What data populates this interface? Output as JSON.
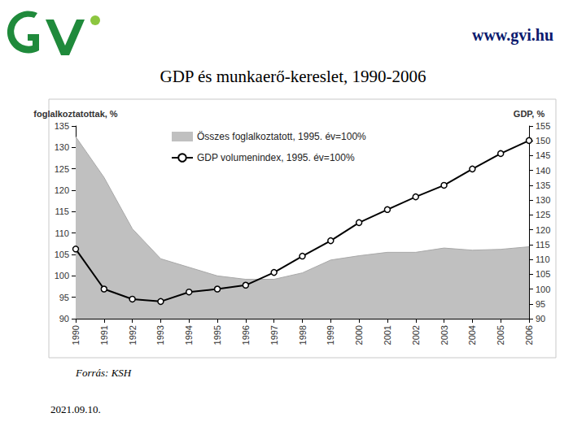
{
  "url": "www.gvi.hu",
  "source": "Forrás: KSH",
  "date": "2021.09.10.",
  "chart_data": {
    "type": "line",
    "title": "GDP és munkaerő-kereslet, 1990-2006",
    "y_label": "foglalkoztatottak, %",
    "y2_label": "GDP, %",
    "categories": [
      "1990",
      "1991",
      "1992",
      "1993",
      "1994",
      "1995",
      "1996",
      "1997",
      "1998",
      "1999",
      "2000",
      "2001",
      "2002",
      "2003",
      "2004",
      "2005",
      "2006"
    ],
    "ylim": [
      90,
      135
    ],
    "yticks": [
      90,
      95,
      100,
      105,
      110,
      115,
      120,
      125,
      130,
      135
    ],
    "y2lim": [
      90,
      155
    ],
    "y2ticks": [
      90,
      95,
      100,
      105,
      110,
      115,
      120,
      125,
      130,
      135,
      140,
      145,
      150,
      155
    ],
    "grid": false,
    "legend": "upper left",
    "series": [
      {
        "name": "Összes foglalkoztatott, 1995. év=100%",
        "type": "area",
        "color": "#c0c0c0",
        "values": [
          132.5,
          123,
          111,
          104,
          102,
          100,
          99.2,
          99.2,
          100.7,
          103.7,
          104.7,
          105.5,
          105.5,
          106.5,
          106,
          106.2,
          106.8
        ]
      },
      {
        "name": "GDP volumenindex, 1995. év=100%",
        "type": "line",
        "color": "#000000",
        "marker": "circle",
        "axis": "y2",
        "values": [
          113.5,
          100,
          96.6,
          95.8,
          99,
          100,
          101.3,
          105.6,
          111.1,
          116.3,
          122.4,
          126.8,
          131.1,
          135,
          140.5,
          145.7,
          150.1
        ]
      }
    ]
  }
}
